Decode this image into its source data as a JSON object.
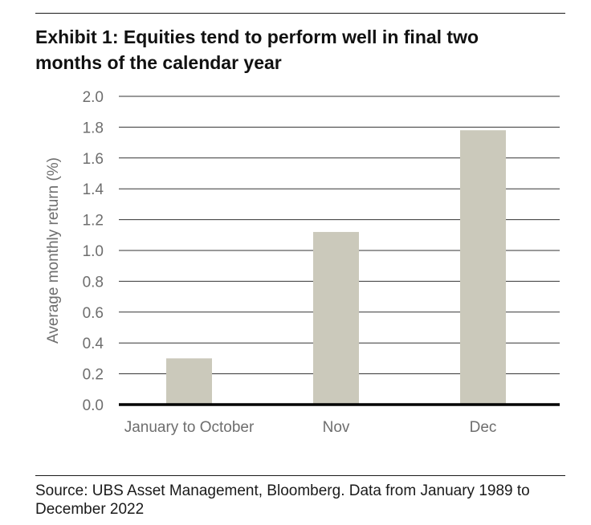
{
  "title": "Exhibit 1: Equities tend to perform well in final two months of the calendar year",
  "source": "Source: UBS Asset Management, Bloomberg. Data from January 1989 to December 2022",
  "chart_data": {
    "type": "bar",
    "categories": [
      "January to October",
      "Nov",
      "Dec"
    ],
    "values": [
      0.3,
      1.12,
      1.78
    ],
    "ylabel": "Average monthly return (%)",
    "xlabel": "",
    "ylim": [
      0,
      2.0
    ],
    "yticks": [
      "0.0",
      "0.2",
      "0.4",
      "0.6",
      "0.8",
      "1.0",
      "1.2",
      "1.4",
      "1.6",
      "1.8",
      "2.0"
    ],
    "grid": true,
    "legend": "none",
    "colors": {
      "bar": "#cbc9bb",
      "grid": "#333333",
      "axis": "#000000",
      "tick_label": "#6e6e6e"
    }
  }
}
